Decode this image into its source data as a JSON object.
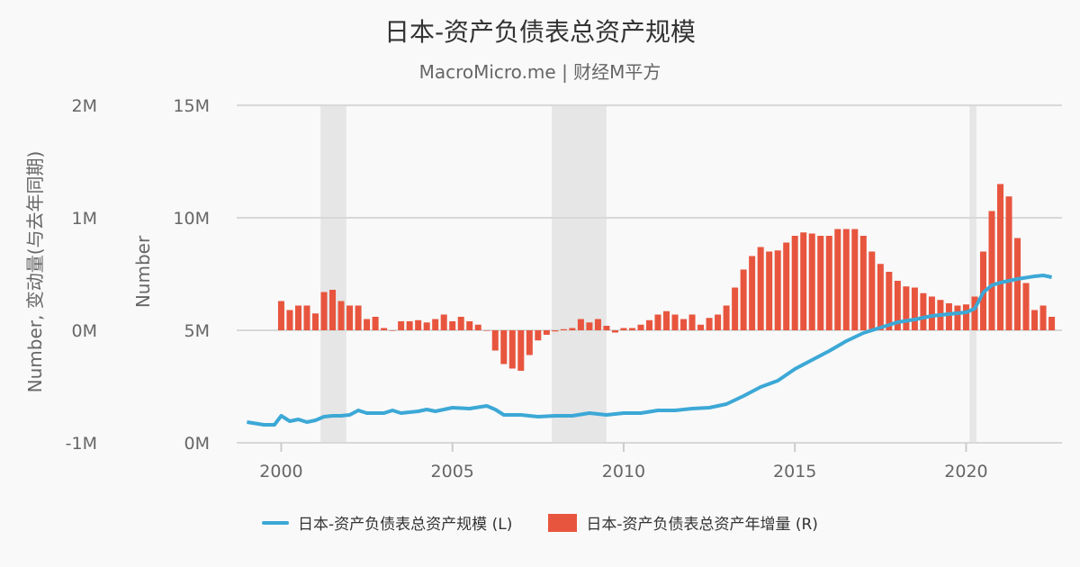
{
  "title": "日本-资产负债表总资产规模",
  "subtitle": "MacroMicro.me | 财经M平方",
  "chart_data": {
    "type": "bar+line",
    "title": "日本-资产负债表总资产规模",
    "x_ticks": [
      "2000",
      "2005",
      "2010",
      "2015",
      "2020"
    ],
    "xlim": [
      1998.7,
      2022.8
    ],
    "left_axis": {
      "label": "Number",
      "ylim": [
        0,
        15
      ],
      "ticks": [
        "0M",
        "5M",
        "10M",
        "15M"
      ]
    },
    "right_axis": {
      "label": "Number, 变动量(与去年同期)",
      "ylim": [
        -1,
        2
      ],
      "ticks": [
        "-1M",
        "0M",
        "1M",
        "2M"
      ]
    },
    "grid": true,
    "legend_placement": "bottom",
    "recession_shading": [
      [
        2001.15,
        2001.9
      ],
      [
        2007.9,
        2009.5
      ],
      [
        2020.1,
        2020.3
      ]
    ],
    "series": [
      {
        "name": "日本-资产负债表总资产规模 (L)",
        "type": "line",
        "axis": "left",
        "color": "#3ca8d6",
        "unit": "M",
        "x": [
          1999.0,
          1999.5,
          1999.8,
          2000.0,
          2000.25,
          2000.5,
          2000.75,
          2001.0,
          2001.25,
          2001.5,
          2001.75,
          2002.0,
          2002.25,
          2002.5,
          2003.0,
          2003.25,
          2003.5,
          2004.0,
          2004.25,
          2004.5,
          2005.0,
          2005.5,
          2006.0,
          2006.25,
          2006.5,
          2007.0,
          2007.5,
          2008.0,
          2008.5,
          2009.0,
          2009.5,
          2010.0,
          2010.5,
          2011.0,
          2011.5,
          2012.0,
          2012.5,
          2013.0,
          2013.5,
          2014.0,
          2014.5,
          2015.0,
          2015.5,
          2016.0,
          2016.5,
          2017.0,
          2017.5,
          2018.0,
          2018.5,
          2019.0,
          2019.5,
          2020.0,
          2020.25,
          2020.5,
          2020.75,
          2021.0,
          2021.5,
          2022.0,
          2022.25,
          2022.5
        ],
        "values": [
          0.92,
          0.8,
          0.8,
          1.2,
          0.96,
          1.04,
          0.92,
          1.0,
          1.16,
          1.2,
          1.2,
          1.24,
          1.44,
          1.32,
          1.32,
          1.44,
          1.32,
          1.4,
          1.48,
          1.4,
          1.56,
          1.52,
          1.64,
          1.48,
          1.24,
          1.24,
          1.16,
          1.2,
          1.2,
          1.32,
          1.24,
          1.32,
          1.32,
          1.44,
          1.44,
          1.52,
          1.56,
          1.72,
          2.08,
          2.48,
          2.76,
          3.28,
          3.68,
          4.08,
          4.52,
          4.88,
          5.12,
          5.36,
          5.48,
          5.64,
          5.72,
          5.8,
          5.96,
          6.68,
          7.0,
          7.12,
          7.28,
          7.4,
          7.44,
          7.36
        ]
      },
      {
        "name": "日本-资产负债表总资产年增量 (R)",
        "type": "bar",
        "axis": "right",
        "color": "#e8553e",
        "unit": "M",
        "x": [
          2000.0,
          2000.25,
          2000.5,
          2000.75,
          2001.0,
          2001.25,
          2001.5,
          2001.75,
          2002.0,
          2002.25,
          2002.5,
          2002.75,
          2003.0,
          2003.25,
          2003.5,
          2003.75,
          2004.0,
          2004.25,
          2004.5,
          2004.75,
          2005.0,
          2005.25,
          2005.5,
          2005.75,
          2006.0,
          2006.25,
          2006.5,
          2006.75,
          2007.0,
          2007.25,
          2007.5,
          2007.75,
          2008.0,
          2008.25,
          2008.5,
          2008.75,
          2009.0,
          2009.25,
          2009.5,
          2009.75,
          2010.0,
          2010.25,
          2010.5,
          2010.75,
          2011.0,
          2011.25,
          2011.5,
          2011.75,
          2012.0,
          2012.25,
          2012.5,
          2012.75,
          2013.0,
          2013.25,
          2013.5,
          2013.75,
          2014.0,
          2014.25,
          2014.5,
          2014.75,
          2015.0,
          2015.25,
          2015.5,
          2015.75,
          2016.0,
          2016.25,
          2016.5,
          2016.75,
          2017.0,
          2017.25,
          2017.5,
          2017.75,
          2018.0,
          2018.25,
          2018.5,
          2018.75,
          2019.0,
          2019.25,
          2019.5,
          2019.75,
          2020.0,
          2020.25,
          2020.5,
          2020.75,
          2021.0,
          2021.25,
          2021.5,
          2021.75,
          2022.0,
          2022.25,
          2022.5
        ],
        "values": [
          0.26,
          0.18,
          0.22,
          0.22,
          0.15,
          0.34,
          0.36,
          0.26,
          0.22,
          0.22,
          0.1,
          0.12,
          0.02,
          0.0,
          0.08,
          0.08,
          0.09,
          0.07,
          0.1,
          0.14,
          0.08,
          0.12,
          0.08,
          0.05,
          0.0,
          -0.18,
          -0.3,
          -0.34,
          -0.36,
          -0.22,
          -0.09,
          -0.04,
          -0.01,
          0.01,
          0.02,
          0.1,
          0.07,
          0.1,
          0.04,
          -0.02,
          0.02,
          0.02,
          0.05,
          0.09,
          0.14,
          0.17,
          0.14,
          0.1,
          0.14,
          0.05,
          0.11,
          0.14,
          0.22,
          0.38,
          0.54,
          0.66,
          0.74,
          0.7,
          0.71,
          0.78,
          0.84,
          0.87,
          0.86,
          0.84,
          0.84,
          0.9,
          0.9,
          0.9,
          0.84,
          0.7,
          0.59,
          0.52,
          0.44,
          0.39,
          0.38,
          0.33,
          0.3,
          0.27,
          0.24,
          0.22,
          0.23,
          0.3,
          0.7,
          1.06,
          1.3,
          1.19,
          0.82,
          0.42,
          0.18,
          0.22,
          0.12
        ]
      }
    ]
  }
}
